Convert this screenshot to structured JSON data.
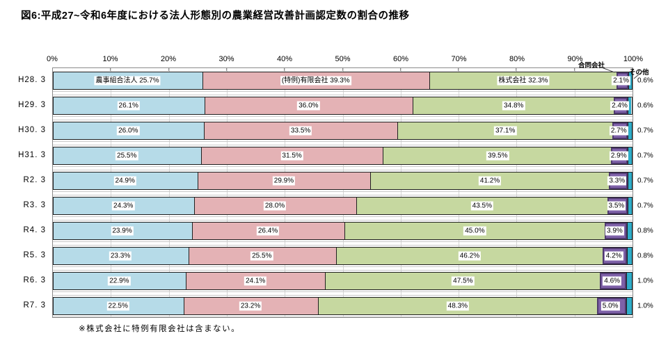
{
  "title": "図6:平成27~令和6年度における法人形態別の農業経営改善計画認定数の割合の推移",
  "footnote": "※株式会社に特例有限会社は含まない。",
  "annotations": {
    "goudou_label": "合同会社",
    "sonota_label": "その他"
  },
  "colors": {
    "noji_blue": "#b6dbe8",
    "tokurei_pink": "#e4b2b5",
    "kabushiki_green": "#c6d8a0",
    "goudou_purple": "#7e61a8",
    "goudou_border": "#4f3a6e",
    "sonota_teal": "#2fadc9",
    "bar_border": "#1f1f1f",
    "gridline": "#d6d6d6",
    "axis": "#8a8a8a"
  },
  "chart_data": {
    "type": "bar",
    "orientation": "horizontal",
    "stacked": true,
    "title": "図6:平成27~令和6年度における法人形態別の農業経営改善計画認定数の割合の推移",
    "categories": [
      "H28. 3",
      "H29. 3",
      "H30. 3",
      "H31. 3",
      "R2. 3",
      "R3. 3",
      "R4. 3",
      "R5. 3",
      "R6. 3",
      "R7. 3"
    ],
    "series": [
      {
        "name": "農事組合法人",
        "color": "#b6dbe8",
        "values": [
          25.7,
          26.1,
          26.0,
          25.5,
          24.9,
          24.3,
          23.9,
          23.3,
          22.9,
          22.5
        ]
      },
      {
        "name": "(特例)有限会社",
        "color": "#e4b2b5",
        "values": [
          39.3,
          36.0,
          33.5,
          31.5,
          29.9,
          28.0,
          26.4,
          25.5,
          24.1,
          23.2
        ]
      },
      {
        "name": "株式会社",
        "color": "#c6d8a0",
        "values": [
          32.3,
          34.8,
          37.1,
          39.5,
          41.2,
          43.5,
          45.0,
          46.2,
          47.5,
          48.3
        ]
      },
      {
        "name": "合同会社",
        "color": "#7e61a8",
        "values": [
          2.1,
          2.4,
          2.7,
          2.9,
          3.3,
          3.5,
          3.9,
          4.2,
          4.6,
          5.0
        ]
      },
      {
        "name": "その他",
        "color": "#2fadc9",
        "values": [
          0.6,
          0.6,
          0.7,
          0.7,
          0.7,
          0.7,
          0.8,
          0.8,
          1.0,
          1.0
        ]
      }
    ],
    "xlim": [
      0,
      100
    ],
    "xticks": [
      "0%",
      "10%",
      "20%",
      "30%",
      "40%",
      "50%",
      "60%",
      "70%",
      "80%",
      "90%",
      "100%"
    ],
    "grid": "vertical major gridlines every 10%",
    "value_suffix": "%",
    "legend_position": "none (labels in first bar and callouts above axis)",
    "note": "※株式会社に特例有限会社は含まない。"
  }
}
